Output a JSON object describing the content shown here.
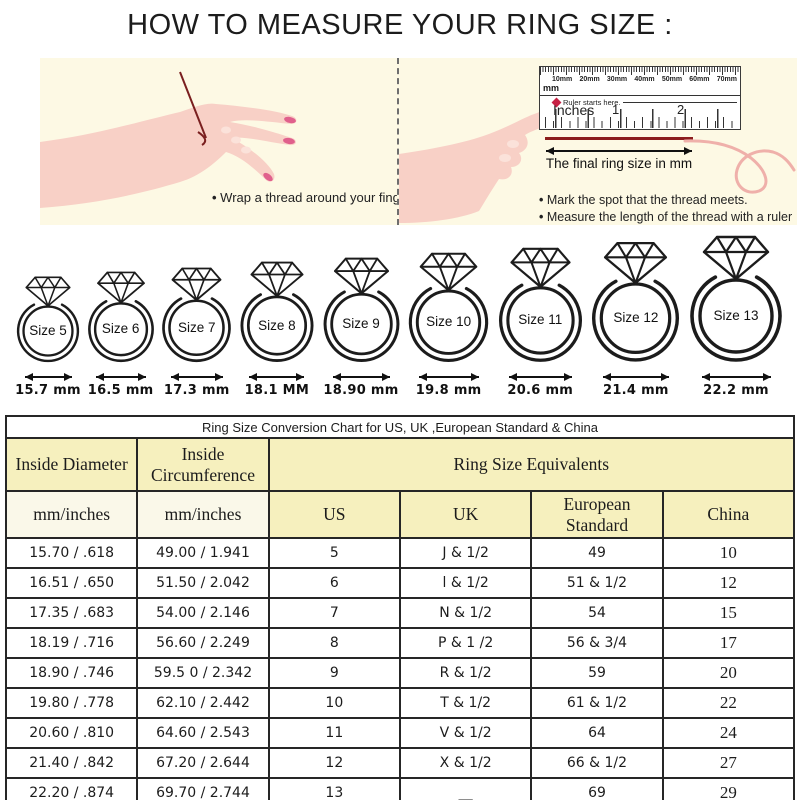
{
  "page_title": "HOW TO MEASURE YOUR RING SIZE :",
  "instructions": {
    "left_panel": {
      "bullet": "Wrap a thread around your finger"
    },
    "right_panel": {
      "ruler": {
        "mm_unit": "mm",
        "mm_labels": [
          "10mm",
          "20mm",
          "30mm",
          "40mm",
          "50mm",
          "60mm",
          "70mm"
        ],
        "start_note": "Ruler starts here.",
        "inches_label": "Inches",
        "inch_numbers": [
          "1",
          "2"
        ]
      },
      "final_size_label": "The final ring size in mm",
      "bullets": [
        "Mark the spot that the thread meets.",
        "Measure the length of the thread with a ruler"
      ]
    }
  },
  "rings": {
    "items": [
      {
        "size_label": "Size 5",
        "diameter_label": "15.7 mm"
      },
      {
        "size_label": "Size 6",
        "diameter_label": "16.5 mm"
      },
      {
        "size_label": "Size 7",
        "diameter_label": "17.3 mm"
      },
      {
        "size_label": "Size 8",
        "diameter_label": "18.1 MM"
      },
      {
        "size_label": "Size 9",
        "diameter_label": "18.90 mm"
      },
      {
        "size_label": "Size 10",
        "diameter_label": "19.8 mm"
      },
      {
        "size_label": "Size 11",
        "diameter_label": "20.6 mm"
      },
      {
        "size_label": "Size 12",
        "diameter_label": "21.4 mm"
      },
      {
        "size_label": "Size 13",
        "diameter_label": "22.2 mm"
      }
    ]
  },
  "conversion_table": {
    "title": "Ring Size Conversion Chart for US, UK ,European Standard & China",
    "headers": {
      "inside_diameter": "Inside Diameter",
      "inside_circumference": "Inside Circumference",
      "ring_size_equivalents": "Ring Size Equivalents",
      "diameter_unit": "mm/inches",
      "circumference_unit": "mm/inches",
      "us": "US",
      "uk": "UK",
      "european_standard": "European Standard",
      "china": "China"
    },
    "rows": [
      [
        "15.70 / .618",
        "49.00 / 1.941",
        "5",
        "J & 1/2",
        "49",
        "10"
      ],
      [
        "16.51 / .650",
        "51.50 / 2.042",
        "6",
        "l & 1/2",
        "51 & 1/2",
        "12"
      ],
      [
        "17.35 / .683",
        "54.00 / 2.146",
        "7",
        "N & 1/2",
        "54",
        "15"
      ],
      [
        "18.19 / .716",
        "56.60 / 2.249",
        "8",
        "P & 1 /2",
        "56 & 3/4",
        "17"
      ],
      [
        "18.90 / .746",
        "59.5 0 / 2.342",
        "9",
        "R & 1/2",
        "59",
        "20"
      ],
      [
        "19.80 / .778",
        "62.10 / 2.442",
        "10",
        "T & 1/2",
        "61 & 1/2",
        "22"
      ],
      [
        "20.60 / .810",
        "64.60 / 2.543",
        "11",
        "V & 1/2",
        "64",
        "24"
      ],
      [
        "21.40 / .842",
        "67.20 / 2.644",
        "12",
        "X & 1/2",
        "66 & 1/2",
        "27"
      ],
      [
        "22.20 / .874",
        "69.70 / 2.744",
        "13",
        "__",
        "69",
        "29"
      ]
    ]
  },
  "colors": {
    "panel_background": "#FDF9E4",
    "table_header_yellow": "#F6F0BE",
    "table_subheader_cream": "#FAF8E9",
    "thread_red": "#8B1D1D",
    "ruler_marker_red": "#C62144",
    "skin_pink": "#F8D0C6",
    "nail_pink": "#E0608C",
    "curl_pink": "#EFB0AA",
    "line_black": "#262626"
  }
}
